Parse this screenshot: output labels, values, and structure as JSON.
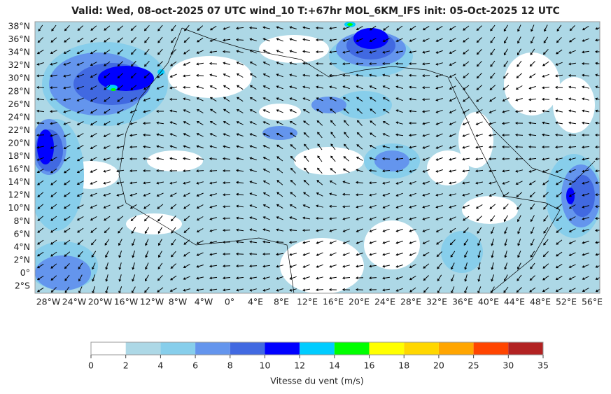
{
  "title": "Valid: Wed, 08-oct-2025   07 UTC   wind_10   T:+67hr   MOL_6KM_IFS   init: 05-Oct-2025    12 UTC",
  "map": {
    "lat_labels": [
      "38°N",
      "36°N",
      "34°N",
      "32°N",
      "30°N",
      "28°N",
      "26°N",
      "24°N",
      "22°N",
      "20°N",
      "18°N",
      "16°N",
      "14°N",
      "12°N",
      "10°N",
      "8°N",
      "6°N",
      "4°N",
      "2°N",
      "0°",
      "2°S"
    ],
    "lon_labels": [
      "28°W",
      "24°W",
      "20°W",
      "16°W",
      "12°W",
      "8°W",
      "4°W",
      "0°",
      "4°E",
      "8°E",
      "12°E",
      "16°E",
      "20°E",
      "24°E",
      "28°E",
      "32°E",
      "36°E",
      "40°E",
      "44°E",
      "48°E",
      "52°E",
      "56°E"
    ]
  },
  "colorbar": {
    "ticks": [
      0,
      2,
      4,
      6,
      8,
      10,
      12,
      14,
      16,
      18,
      20,
      25,
      30,
      35
    ],
    "colors": [
      "#ffffff",
      "#add8e6",
      "#87ceeb",
      "#6495ed",
      "#4169e1",
      "#0000ff",
      "#00ccff",
      "#00ff00",
      "#ffff00",
      "#ffd700",
      "#ffa500",
      "#ff4500",
      "#b22222"
    ],
    "label": "Vitesse du vent (m/s)"
  }
}
